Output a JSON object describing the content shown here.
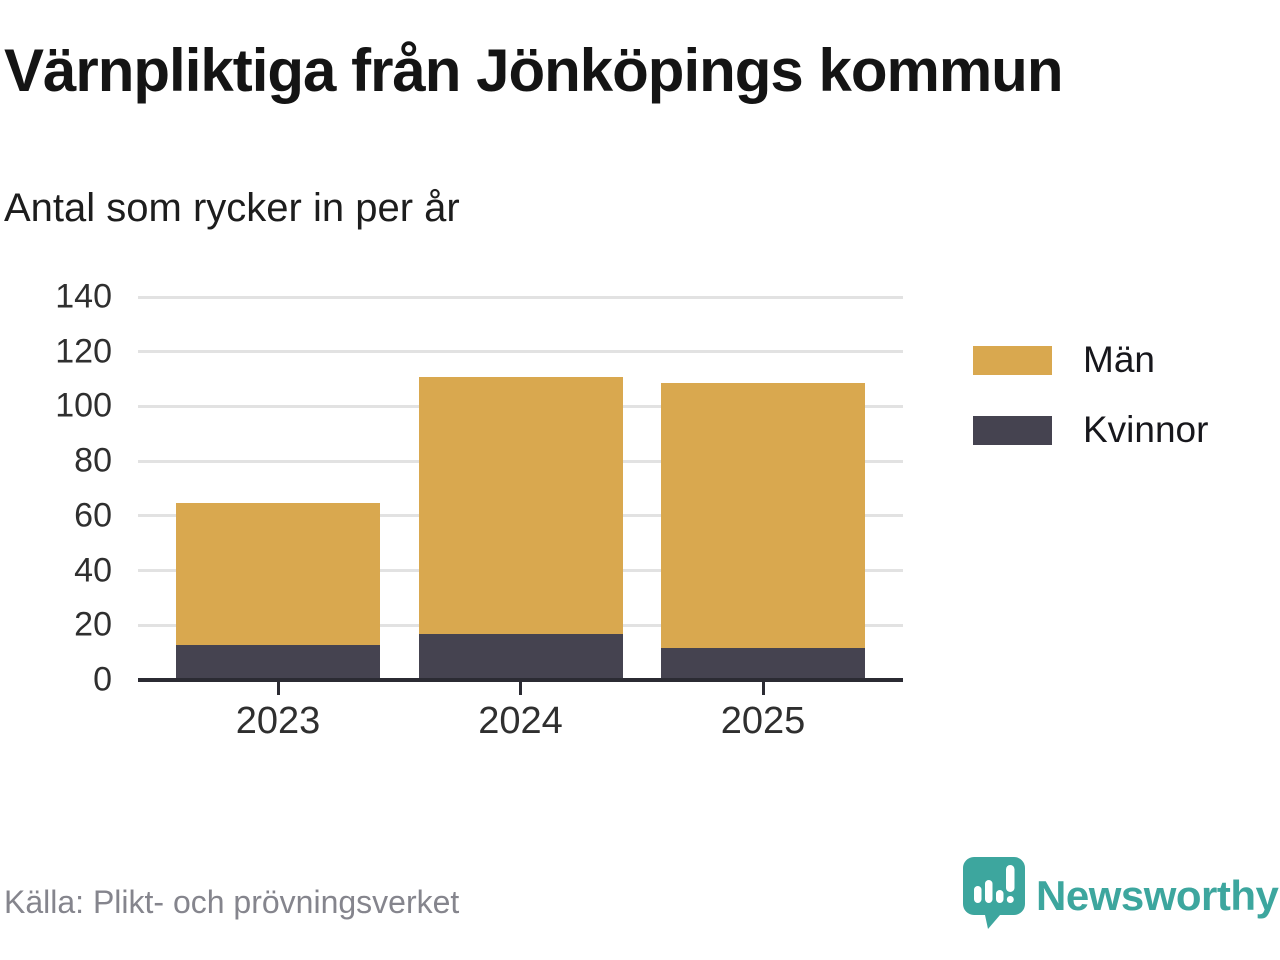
{
  "header": {
    "title": "Värnpliktiga från Jönköpings kommun",
    "subtitle": "Antal som rycker in per år"
  },
  "footer": {
    "source": "Källa: Plikt- och prövningsverket",
    "brand": "Newsworthy",
    "logo_icon": "bar-chart-speech-bubble-icon"
  },
  "colors": {
    "men": "#d9a84f",
    "women": "#454350",
    "brand_teal": "#3da69e",
    "grid": "#e2e2e2",
    "axis": "#2b2b33",
    "text_muted": "#85858d"
  },
  "chart_data": {
    "type": "bar",
    "stacked": true,
    "title": "Värnpliktiga från Jönköpings kommun",
    "subtitle": "Antal som rycker in per år",
    "categories": [
      "2023",
      "2024",
      "2025"
    ],
    "series": [
      {
        "name": "Män",
        "color": "#d9a84f",
        "values": [
          52,
          94,
          97
        ]
      },
      {
        "name": "Kvinnor",
        "color": "#454350",
        "values": [
          12,
          16,
          11
        ]
      }
    ],
    "stack_order_bottom_up": [
      "Kvinnor",
      "Män"
    ],
    "totals": [
      64,
      110,
      108
    ],
    "xlabel": "",
    "ylabel": "",
    "ylim": [
      0,
      140
    ],
    "yticks": [
      0,
      20,
      40,
      60,
      80,
      100,
      120,
      140
    ],
    "grid": true,
    "legend_position": "right"
  }
}
